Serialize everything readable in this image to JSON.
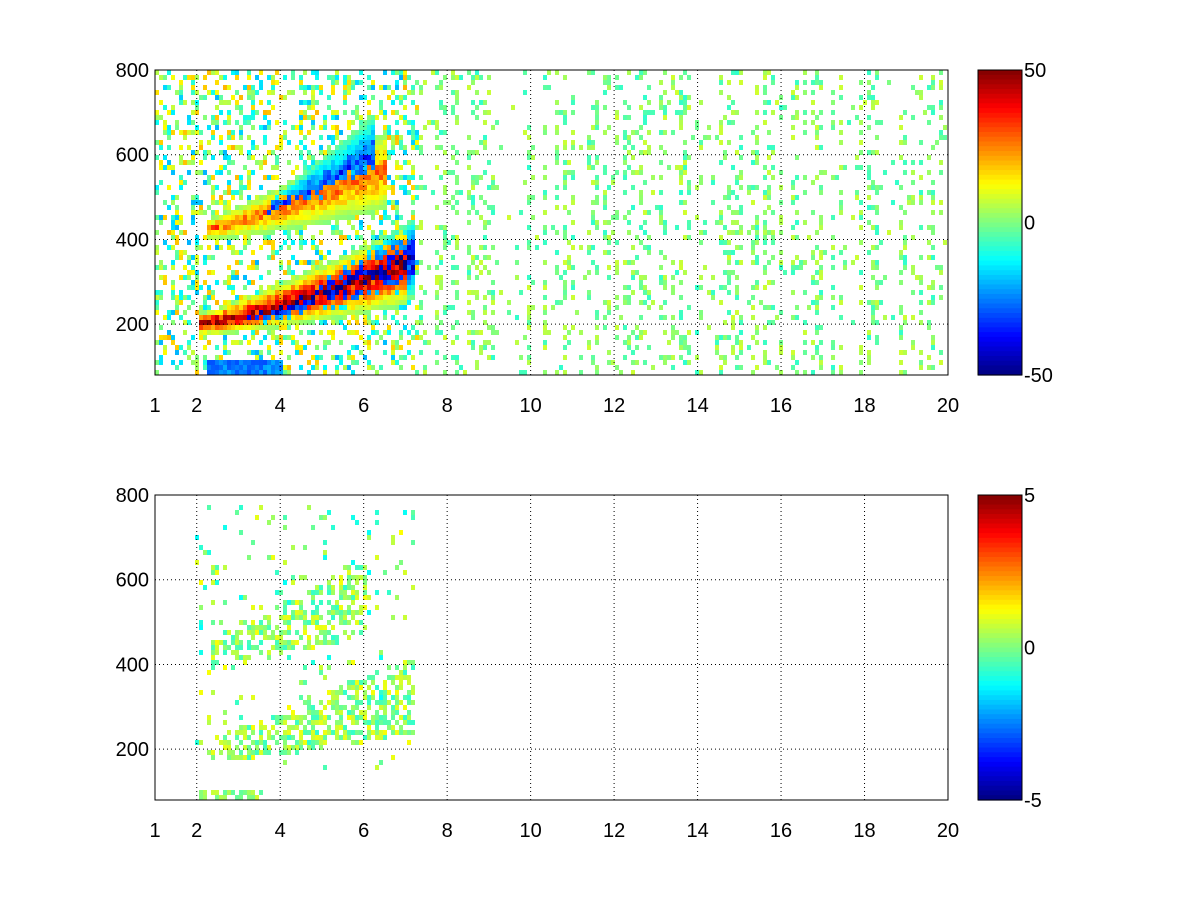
{
  "chart_data": [
    {
      "type": "heatmap",
      "title": "",
      "xlabel": "",
      "ylabel": "",
      "xlim": [
        1,
        20
      ],
      "ylim": [
        80,
        800
      ],
      "x_ticks": [
        1,
        2,
        4,
        6,
        8,
        10,
        12,
        14,
        16,
        18,
        20
      ],
      "y_ticks": [
        200,
        400,
        600,
        800
      ],
      "grid": true,
      "colormap": "jet",
      "clim": [
        -50,
        50
      ],
      "colorbar_ticks": [
        50,
        0,
        -50
      ],
      "features": [
        {
          "description_value": "strong positive ridge",
          "x": [
            2.0,
            7.0
          ],
          "y_start": 205,
          "curve": "rising",
          "peak_value": 50
        },
        {
          "description_value": "strong negative ridge",
          "x": [
            3.2,
            7.2
          ],
          "y_start": 225,
          "curve": "rising",
          "peak_value": -50
        },
        {
          "description_value": "second positive ridge",
          "x": [
            2.2,
            6.5
          ],
          "y_start": 430,
          "curve": "rising",
          "peak_value": 30
        },
        {
          "description_value": "second negative ridge",
          "x": [
            3.5,
            6.2
          ],
          "y_start": 470,
          "curve": "rising",
          "peak_value": -35
        }
      ]
    },
    {
      "type": "heatmap",
      "title": "",
      "xlabel": "",
      "ylabel": "",
      "xlim": [
        1,
        20
      ],
      "ylim": [
        80,
        800
      ],
      "x_ticks": [
        1,
        2,
        4,
        6,
        8,
        10,
        12,
        14,
        16,
        18,
        20
      ],
      "y_ticks": [
        200,
        400,
        600,
        800
      ],
      "grid": true,
      "colormap": "jet",
      "clim": [
        -5,
        5
      ],
      "colorbar_ticks": [
        5,
        0,
        -5
      ],
      "features": [
        {
          "description_value": "near-zero ridge",
          "x": [
            2.0,
            7.2
          ],
          "y_start": 200,
          "curve": "rising",
          "peak_value": 0.5
        },
        {
          "description_value": "near-zero upper ridge",
          "x": [
            2.3,
            6.0
          ],
          "y_start": 430,
          "curve": "rising",
          "peak_value": 0.3
        }
      ]
    }
  ]
}
